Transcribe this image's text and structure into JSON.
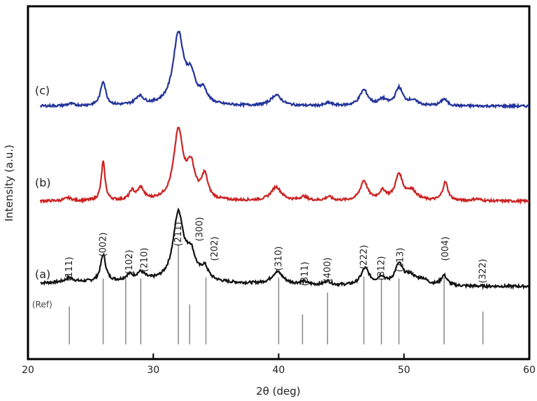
{
  "chart_data": {
    "type": "line",
    "title": "",
    "xlabel": "2θ (deg)",
    "ylabel": "Intensity (a.u.)",
    "xlim": [
      20,
      60
    ],
    "xticks": [
      20,
      30,
      40,
      50,
      60
    ],
    "series_colors": {
      "a": "#111111",
      "b": "#cc2222",
      "c": "#22339a",
      "ref": "#888888"
    },
    "series": [
      {
        "name": "(a)",
        "key": "a",
        "baseline": 0.2,
        "peaks": [
          {
            "x": 23.3,
            "h": 0.2,
            "w": 0.4
          },
          {
            "x": 26.0,
            "h": 1.2,
            "w": 0.25
          },
          {
            "x": 28.1,
            "h": 0.25,
            "w": 0.35
          },
          {
            "x": 29.0,
            "h": 0.35,
            "w": 0.4
          },
          {
            "x": 32.0,
            "h": 3.0,
            "w": 0.5
          },
          {
            "x": 33.0,
            "h": 1.1,
            "w": 0.45
          },
          {
            "x": 34.1,
            "h": 0.55,
            "w": 0.35
          },
          {
            "x": 39.9,
            "h": 0.55,
            "w": 0.55
          },
          {
            "x": 42.0,
            "h": 0.12,
            "w": 0.4
          },
          {
            "x": 43.9,
            "h": 0.18,
            "w": 0.3
          },
          {
            "x": 46.9,
            "h": 0.75,
            "w": 0.4
          },
          {
            "x": 48.2,
            "h": 0.35,
            "w": 0.35
          },
          {
            "x": 49.6,
            "h": 0.9,
            "w": 0.4
          },
          {
            "x": 50.5,
            "h": 0.4,
            "w": 0.5
          },
          {
            "x": 51.5,
            "h": 0.25,
            "w": 0.5
          },
          {
            "x": 53.2,
            "h": 0.45,
            "w": 0.3
          }
        ]
      },
      {
        "name": "(b)",
        "key": "b",
        "baseline": 0.0,
        "peaks": [
          {
            "x": 23.2,
            "h": 0.15,
            "w": 0.35
          },
          {
            "x": 26.0,
            "h": 2.0,
            "w": 0.18
          },
          {
            "x": 28.3,
            "h": 0.45,
            "w": 0.25
          },
          {
            "x": 29.0,
            "h": 0.6,
            "w": 0.3
          },
          {
            "x": 32.0,
            "h": 3.5,
            "w": 0.45
          },
          {
            "x": 33.0,
            "h": 1.6,
            "w": 0.4
          },
          {
            "x": 34.1,
            "h": 1.2,
            "w": 0.3
          },
          {
            "x": 39.8,
            "h": 0.7,
            "w": 0.5
          },
          {
            "x": 42.0,
            "h": 0.2,
            "w": 0.35
          },
          {
            "x": 44.0,
            "h": 0.2,
            "w": 0.3
          },
          {
            "x": 46.8,
            "h": 1.0,
            "w": 0.35
          },
          {
            "x": 48.3,
            "h": 0.45,
            "w": 0.35
          },
          {
            "x": 49.6,
            "h": 1.3,
            "w": 0.35
          },
          {
            "x": 50.6,
            "h": 0.5,
            "w": 0.5
          },
          {
            "x": 53.3,
            "h": 0.95,
            "w": 0.25
          },
          {
            "x": 55.8,
            "h": 0.1,
            "w": 0.4
          }
        ]
      },
      {
        "name": "(c)",
        "key": "c",
        "baseline": 0.0,
        "peaks": [
          {
            "x": 23.4,
            "h": 0.1,
            "w": 0.35
          },
          {
            "x": 26.0,
            "h": 1.25,
            "w": 0.25
          },
          {
            "x": 28.9,
            "h": 0.45,
            "w": 0.4
          },
          {
            "x": 32.0,
            "h": 3.6,
            "w": 0.5
          },
          {
            "x": 33.0,
            "h": 1.3,
            "w": 0.45
          },
          {
            "x": 34.0,
            "h": 0.65,
            "w": 0.35
          },
          {
            "x": 39.8,
            "h": 0.55,
            "w": 0.5
          },
          {
            "x": 44.0,
            "h": 0.15,
            "w": 0.3
          },
          {
            "x": 46.8,
            "h": 0.8,
            "w": 0.4
          },
          {
            "x": 48.3,
            "h": 0.3,
            "w": 0.35
          },
          {
            "x": 49.6,
            "h": 0.9,
            "w": 0.35
          },
          {
            "x": 50.7,
            "h": 0.25,
            "w": 0.5
          },
          {
            "x": 53.2,
            "h": 0.35,
            "w": 0.3
          }
        ]
      }
    ],
    "reference": {
      "label": "(Ref)",
      "lines": [
        {
          "x": 23.3,
          "intensity": 0.38
        },
        {
          "x": 26.0,
          "intensity": 0.66
        },
        {
          "x": 27.8,
          "intensity": 0.66
        },
        {
          "x": 29.0,
          "intensity": 0.66
        },
        {
          "x": 32.0,
          "intensity": 1.0
        },
        {
          "x": 32.9,
          "intensity": 0.4
        },
        {
          "x": 34.2,
          "intensity": 0.67
        },
        {
          "x": 40.0,
          "intensity": 0.67
        },
        {
          "x": 41.9,
          "intensity": 0.3
        },
        {
          "x": 43.9,
          "intensity": 0.52
        },
        {
          "x": 46.8,
          "intensity": 0.68
        },
        {
          "x": 48.2,
          "intensity": 0.66
        },
        {
          "x": 49.6,
          "intensity": 0.66
        },
        {
          "x": 53.2,
          "intensity": 0.67
        },
        {
          "x": 56.3,
          "intensity": 0.33
        }
      ]
    },
    "hkl_annotations": [
      {
        "label": "(111)",
        "x": 23.3
      },
      {
        "label": "(002)",
        "x": 26.0
      },
      {
        "label": "(102)",
        "x": 28.1
      },
      {
        "label": "(210)",
        "x": 29.3
      },
      {
        "label": "(211)",
        "x": 32.0
      },
      {
        "label": "(300)",
        "x": 33.7
      },
      {
        "label": "(202)",
        "x": 34.9
      },
      {
        "label": "(310)",
        "x": 40.0
      },
      {
        "label": "(311)",
        "x": 42.1
      },
      {
        "label": "(400)",
        "x": 43.9
      },
      {
        "label": "(222)",
        "x": 46.8
      },
      {
        "label": "(312)",
        "x": 48.2
      },
      {
        "label": "(213)",
        "x": 49.7
      },
      {
        "label": "(004)",
        "x": 53.3
      },
      {
        "label": "(322)",
        "x": 56.3
      }
    ]
  }
}
